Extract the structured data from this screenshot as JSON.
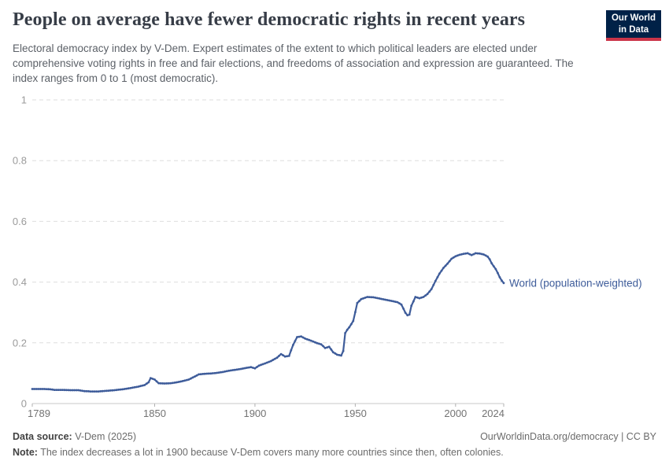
{
  "header": {
    "title": "People on average have fewer democratic rights in recent years",
    "subtitle": "Electoral democracy index by V-Dem. Expert estimates of the extent to which political leaders are elected under comprehensive voting rights in free and fair elections, and freedoms of association and expression are guaranteed. The index ranges from 0 to 1 (most democratic)."
  },
  "logo": {
    "line1": "Our World",
    "line2": "in Data",
    "bg_color": "#002147",
    "accent_color": "#cb3549"
  },
  "footer": {
    "data_source_label": "Data source:",
    "data_source_value": "V-Dem (2025)",
    "attribution": "OurWorldinData.org/democracy | CC BY",
    "note_label": "Note:",
    "note_text": "The index decreases a lot in 1900 because V-Dem covers many more countries since then, often colonies."
  },
  "chart_data": {
    "type": "line",
    "title": "Electoral democracy index, world population-weighted average",
    "xlabel": "",
    "ylabel": "",
    "xlim": [
      1789,
      2024
    ],
    "ylim": [
      0,
      1
    ],
    "grid": "dashed-horizontal",
    "legend_position": "end-of-line-label",
    "x_ticks": [
      1789,
      1850,
      1900,
      1950,
      2000,
      2024
    ],
    "x_tick_labels": [
      "1789",
      "1850",
      "1900",
      "1950",
      "2000",
      "2024"
    ],
    "y_ticks": [
      0,
      0.2,
      0.4,
      0.6,
      0.8,
      1
    ],
    "y_tick_labels": [
      "0",
      "0.2",
      "0.4",
      "0.6",
      "0.8",
      "1"
    ],
    "colors": {
      "series": "#3e5c9a",
      "gridline": "#dedede",
      "axis_line": "#c8c8c8",
      "tick": "#b0b0b0",
      "y_tick_label": "#9b9b9b",
      "x_tick_label": "#737373"
    },
    "series": [
      {
        "name": "World (population-weighted)",
        "color": "#3e5c9a",
        "points": [
          [
            1789,
            0.048
          ],
          [
            1792,
            0.048
          ],
          [
            1795,
            0.048
          ],
          [
            1798,
            0.047
          ],
          [
            1800,
            0.045
          ],
          [
            1804,
            0.045
          ],
          [
            1808,
            0.044
          ],
          [
            1812,
            0.044
          ],
          [
            1815,
            0.041
          ],
          [
            1818,
            0.04
          ],
          [
            1822,
            0.04
          ],
          [
            1826,
            0.042
          ],
          [
            1830,
            0.044
          ],
          [
            1834,
            0.047
          ],
          [
            1838,
            0.051
          ],
          [
            1842,
            0.056
          ],
          [
            1845,
            0.061
          ],
          [
            1847,
            0.07
          ],
          [
            1848,
            0.084
          ],
          [
            1850,
            0.079
          ],
          [
            1852,
            0.067
          ],
          [
            1855,
            0.066
          ],
          [
            1858,
            0.067
          ],
          [
            1861,
            0.07
          ],
          [
            1864,
            0.074
          ],
          [
            1867,
            0.079
          ],
          [
            1870,
            0.089
          ],
          [
            1872,
            0.096
          ],
          [
            1875,
            0.098
          ],
          [
            1878,
            0.099
          ],
          [
            1881,
            0.101
          ],
          [
            1884,
            0.104
          ],
          [
            1887,
            0.108
          ],
          [
            1890,
            0.111
          ],
          [
            1893,
            0.114
          ],
          [
            1896,
            0.118
          ],
          [
            1898,
            0.12
          ],
          [
            1900,
            0.116
          ],
          [
            1902,
            0.125
          ],
          [
            1905,
            0.132
          ],
          [
            1908,
            0.14
          ],
          [
            1911,
            0.151
          ],
          [
            1913,
            0.163
          ],
          [
            1915,
            0.155
          ],
          [
            1917,
            0.157
          ],
          [
            1919,
            0.193
          ],
          [
            1921,
            0.219
          ],
          [
            1923,
            0.221
          ],
          [
            1925,
            0.214
          ],
          [
            1928,
            0.207
          ],
          [
            1931,
            0.199
          ],
          [
            1933,
            0.195
          ],
          [
            1935,
            0.183
          ],
          [
            1937,
            0.187
          ],
          [
            1939,
            0.169
          ],
          [
            1941,
            0.161
          ],
          [
            1943,
            0.158
          ],
          [
            1944,
            0.173
          ],
          [
            1945,
            0.232
          ],
          [
            1946,
            0.243
          ],
          [
            1947,
            0.251
          ],
          [
            1949,
            0.272
          ],
          [
            1950,
            0.301
          ],
          [
            1951,
            0.331
          ],
          [
            1953,
            0.344
          ],
          [
            1956,
            0.351
          ],
          [
            1959,
            0.35
          ],
          [
            1962,
            0.346
          ],
          [
            1965,
            0.342
          ],
          [
            1968,
            0.338
          ],
          [
            1971,
            0.334
          ],
          [
            1973,
            0.326
          ],
          [
            1975,
            0.299
          ],
          [
            1976,
            0.291
          ],
          [
            1977,
            0.293
          ],
          [
            1978,
            0.322
          ],
          [
            1980,
            0.351
          ],
          [
            1982,
            0.347
          ],
          [
            1984,
            0.351
          ],
          [
            1986,
            0.361
          ],
          [
            1988,
            0.377
          ],
          [
            1990,
            0.404
          ],
          [
            1992,
            0.428
          ],
          [
            1994,
            0.447
          ],
          [
            1996,
            0.461
          ],
          [
            1998,
            0.477
          ],
          [
            2000,
            0.485
          ],
          [
            2002,
            0.49
          ],
          [
            2004,
            0.493
          ],
          [
            2006,
            0.495
          ],
          [
            2008,
            0.489
          ],
          [
            2010,
            0.495
          ],
          [
            2012,
            0.494
          ],
          [
            2014,
            0.491
          ],
          [
            2016,
            0.484
          ],
          [
            2017,
            0.475
          ],
          [
            2018,
            0.462
          ],
          [
            2019,
            0.452
          ],
          [
            2020,
            0.443
          ],
          [
            2021,
            0.43
          ],
          [
            2022,
            0.416
          ],
          [
            2023,
            0.405
          ],
          [
            2024,
            0.397
          ]
        ]
      }
    ]
  }
}
